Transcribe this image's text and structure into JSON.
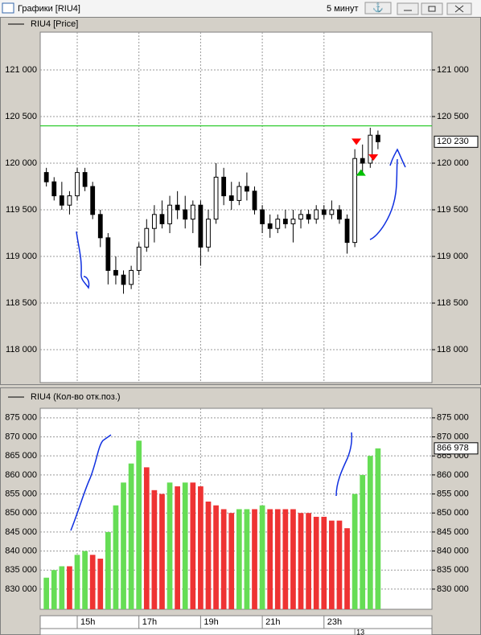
{
  "window": {
    "title": "Графики [RIU4]",
    "interval": "5 минут"
  },
  "chart_data": [
    {
      "type": "candlestick",
      "legend": "RIU4 [Price]",
      "x": [
        14.0,
        14.25,
        14.5,
        14.75,
        15.0,
        15.25,
        15.5,
        15.75,
        16.0,
        16.25,
        16.5,
        16.75,
        17.0,
        17.25,
        17.5,
        17.75,
        18.0,
        18.25,
        18.5,
        18.75,
        19.0,
        19.25,
        19.5,
        19.75,
        20.0,
        20.25,
        20.5,
        20.75,
        21.0,
        21.25,
        21.5,
        21.75,
        22.0,
        22.25,
        22.5,
        22.75,
        23.0,
        23.25,
        23.5,
        23.75,
        24.0,
        24.25,
        24.5,
        24.75
      ],
      "open": [
        119900,
        119800,
        119650,
        119550,
        119650,
        119900,
        119750,
        119450,
        119200,
        118850,
        118800,
        118700,
        118850,
        119100,
        119300,
        119450,
        119350,
        119550,
        119500,
        119400,
        119550,
        119100,
        119400,
        119850,
        119650,
        119600,
        119750,
        119700,
        119500,
        119350,
        119300,
        119400,
        119350,
        119400,
        119450,
        119400,
        119500,
        119450,
        119500,
        119400,
        119150,
        120050,
        120000,
        120300
      ],
      "high": [
        119950,
        119850,
        119800,
        119700,
        119950,
        119950,
        119800,
        119500,
        119250,
        119000,
        118850,
        118900,
        119150,
        119400,
        119550,
        119600,
        119650,
        119700,
        119650,
        119600,
        119600,
        119500,
        120000,
        119950,
        119800,
        119800,
        119900,
        119750,
        119550,
        119450,
        119450,
        119500,
        119500,
        119500,
        119500,
        119550,
        119550,
        119600,
        119550,
        119450,
        120150,
        120200,
        120380,
        120350
      ],
      "low": [
        119750,
        119600,
        119500,
        119450,
        119600,
        119700,
        119400,
        119100,
        118700,
        118700,
        118600,
        118650,
        118800,
        119050,
        119150,
        119300,
        119250,
        119400,
        119300,
        119250,
        118900,
        119050,
        119350,
        119550,
        119500,
        119550,
        119600,
        119450,
        119250,
        119200,
        119250,
        119300,
        119150,
        119300,
        119350,
        119350,
        119400,
        119400,
        119350,
        119030,
        119100,
        119900,
        119950,
        120150
      ],
      "close": [
        119800,
        119650,
        119550,
        119650,
        119900,
        119750,
        119450,
        119200,
        118850,
        118800,
        118700,
        118850,
        119100,
        119300,
        119450,
        119350,
        119550,
        119500,
        119400,
        119550,
        119100,
        119400,
        119850,
        119650,
        119600,
        119750,
        119700,
        119500,
        119350,
        119300,
        119400,
        119350,
        119400,
        119450,
        119400,
        119500,
        119450,
        119500,
        119400,
        119150,
        120050,
        120000,
        120300,
        120230
      ],
      "color": "#000000",
      "xlim": [
        13.8,
        26.5
      ],
      "xticks": [
        15,
        17,
        19,
        21,
        23
      ],
      "ylim": [
        117647,
        121405
      ],
      "yticks": [
        {
          "value": 118000,
          "label": "118 000"
        },
        {
          "value": 118500,
          "label": "118 500"
        },
        {
          "value": 119000,
          "label": "119 000"
        },
        {
          "value": 119500,
          "label": "119 500"
        },
        {
          "value": 120000,
          "label": "120 000"
        },
        {
          "value": 120500,
          "label": "120 500"
        },
        {
          "value": 121000,
          "label": "121 000"
        }
      ],
      "grid": true,
      "level": {
        "value": 120400,
        "color": "#00c000"
      },
      "last_value": {
        "value": 120230,
        "label": "120 230"
      },
      "markers": [
        {
          "x": 24.05,
          "y": 120230,
          "shape": "down",
          "color": "#ff0000"
        },
        {
          "x": 24.2,
          "y": 119900,
          "shape": "up",
          "color": "#00c000"
        },
        {
          "x": 24.6,
          "y": 120060,
          "shape": "down",
          "color": "#ff0000"
        }
      ]
    },
    {
      "type": "bar",
      "legend": "RIU4 (Кол-во отк.поз.)",
      "x": [
        14.0,
        14.25,
        14.5,
        14.75,
        15.0,
        15.25,
        15.5,
        15.75,
        16.0,
        16.25,
        16.5,
        16.75,
        17.0,
        17.25,
        17.5,
        17.75,
        18.0,
        18.25,
        18.5,
        18.75,
        19.0,
        19.25,
        19.5,
        19.75,
        20.0,
        20.25,
        20.5,
        20.75,
        21.0,
        21.25,
        21.5,
        21.75,
        22.0,
        22.25,
        22.5,
        22.75,
        23.0,
        23.25,
        23.5,
        23.75,
        24.0,
        24.25,
        24.5,
        24.75
      ],
      "values": [
        833000,
        835000,
        836000,
        836000,
        839000,
        840000,
        839000,
        838000,
        845000,
        852000,
        858000,
        863000,
        869000,
        862000,
        856000,
        855000,
        858000,
        857000,
        858000,
        858000,
        857000,
        853000,
        852000,
        851000,
        850000,
        851000,
        851000,
        851000,
        852000,
        851000,
        851000,
        851000,
        851000,
        850000,
        850000,
        849000,
        849000,
        848000,
        848000,
        846000,
        855000,
        860000,
        865000,
        866978
      ],
      "colors": [
        "#66dd55",
        "#66dd55",
        "#66dd55",
        "#ee3333",
        "#66dd55",
        "#66dd55",
        "#ee3333",
        "#ee3333",
        "#66dd55",
        "#66dd55",
        "#66dd55",
        "#66dd55",
        "#66dd55",
        "#ee3333",
        "#ee3333",
        "#ee3333",
        "#66dd55",
        "#ee3333",
        "#66dd55",
        "#ee3333",
        "#ee3333",
        "#ee3333",
        "#ee3333",
        "#ee3333",
        "#ee3333",
        "#66dd55",
        "#66dd55",
        "#ee3333",
        "#66dd55",
        "#ee3333",
        "#ee3333",
        "#ee3333",
        "#ee3333",
        "#ee3333",
        "#ee3333",
        "#ee3333",
        "#ee3333",
        "#ee3333",
        "#ee3333",
        "#ee3333",
        "#66dd55",
        "#66dd55",
        "#66dd55",
        "#66dd55"
      ],
      "xlim": [
        13.8,
        26.5
      ],
      "xticks": [
        {
          "value": 15,
          "label": "15h"
        },
        {
          "value": 17,
          "label": "17h"
        },
        {
          "value": 19,
          "label": "19h"
        },
        {
          "value": 21,
          "label": "21h"
        },
        {
          "value": 23,
          "label": "23h"
        }
      ],
      "date_tick": {
        "value": 24,
        "label": "13"
      },
      "ylim": [
        824700,
        877500
      ],
      "yticks": [
        {
          "value": 830000,
          "label": "830 000"
        },
        {
          "value": 835000,
          "label": "835 000"
        },
        {
          "value": 840000,
          "label": "840 000"
        },
        {
          "value": 845000,
          "label": "845 000"
        },
        {
          "value": 850000,
          "label": "850 000"
        },
        {
          "value": 855000,
          "label": "855 000"
        },
        {
          "value": 860000,
          "label": "860 000"
        },
        {
          "value": 865000,
          "label": "865 000"
        },
        {
          "value": 870000,
          "label": "870 000"
        },
        {
          "value": 875000,
          "label": "875 000"
        }
      ],
      "grid": true,
      "last_value": {
        "value": 866978,
        "label": "866 978"
      }
    }
  ]
}
